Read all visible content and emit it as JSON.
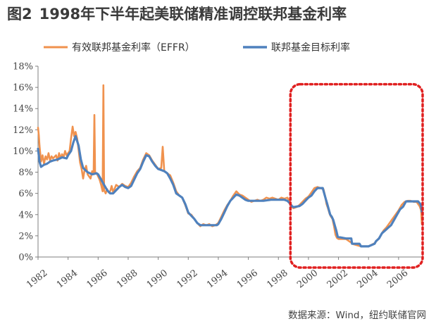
{
  "title": {
    "figure_label": "图2",
    "text": "1998年下半年起美联储精准调控联邦基金利率"
  },
  "source": "数据来源：Wind，纽约联储官网",
  "colors": {
    "effr": "#F0924E",
    "target": "#4F81BD",
    "highlight": "#E02020",
    "axis": "#7f7f7f",
    "title": "#3a3a3a"
  },
  "chart_data": {
    "type": "line",
    "title": "1998年下半年起美联储精准调控联邦基金利率",
    "legend_position": "top",
    "grid": false,
    "xlim": [
      1982,
      2007.6
    ],
    "ylim": [
      0,
      18
    ],
    "y_ticks": [
      "0%",
      "2%",
      "4%",
      "6%",
      "8%",
      "10%",
      "12%",
      "14%",
      "16%",
      "18%"
    ],
    "y_tick_values": [
      0,
      2,
      4,
      6,
      8,
      10,
      12,
      14,
      16,
      18
    ],
    "x_ticks": [
      "1982",
      "1984",
      "1986",
      "1988",
      "1990",
      "1992",
      "1994",
      "1996",
      "1998",
      "2000",
      "2002",
      "2004",
      "2006"
    ],
    "x_tick_values": [
      1982,
      1984,
      1986,
      1988,
      1990,
      1992,
      1994,
      1996,
      1998,
      2000,
      2002,
      2004,
      2006
    ],
    "highlight_box": {
      "x": [
        1998.8,
        2007.6
      ],
      "y": [
        -1.0,
        16.3
      ],
      "style": "dashed"
    },
    "series": [
      {
        "name": "有效联邦基金利率（EFFR）",
        "color": "#F0924E",
        "x": [
          1982.0,
          1982.05,
          1982.1,
          1982.2,
          1982.3,
          1982.4,
          1982.5,
          1982.6,
          1982.7,
          1982.8,
          1982.9,
          1983.0,
          1983.2,
          1983.3,
          1983.4,
          1983.5,
          1983.6,
          1983.7,
          1983.8,
          1983.9,
          1984.0,
          1984.1,
          1984.2,
          1984.3,
          1984.4,
          1984.5,
          1984.6,
          1984.7,
          1984.8,
          1984.9,
          1985.0,
          1985.1,
          1985.2,
          1985.3,
          1985.4,
          1985.5,
          1985.6,
          1985.7,
          1985.75,
          1985.8,
          1985.9,
          1986.0,
          1986.1,
          1986.2,
          1986.3,
          1986.35,
          1986.4,
          1986.5,
          1986.6,
          1986.7,
          1986.8,
          1986.9,
          1987.0,
          1987.2,
          1987.4,
          1987.6,
          1987.8,
          1988.0,
          1988.2,
          1988.4,
          1988.6,
          1988.8,
          1989.0,
          1989.2,
          1989.4,
          1989.6,
          1989.8,
          1990.0,
          1990.2,
          1990.3,
          1990.4,
          1990.6,
          1990.8,
          1991.0,
          1991.2,
          1991.4,
          1991.6,
          1991.8,
          1992.0,
          1992.2,
          1992.4,
          1992.6,
          1992.8,
          1993.0,
          1993.2,
          1993.4,
          1993.6,
          1993.8,
          1994.0,
          1994.2,
          1994.4,
          1994.6,
          1994.8,
          1995.0,
          1995.2,
          1995.4,
          1995.6,
          1995.8,
          1996.0,
          1996.2,
          1996.4,
          1996.6,
          1996.8,
          1997.0,
          1997.2,
          1997.4,
          1997.6,
          1997.8,
          1998.0,
          1998.2,
          1998.4,
          1998.6,
          1998.8,
          1998.9,
          1999.0,
          1999.2,
          1999.4,
          1999.6,
          1999.8,
          2000.0,
          2000.2,
          2000.4,
          2000.6,
          2000.8,
          2001.0,
          2001.1,
          2001.2,
          2001.3,
          2001.4,
          2001.5,
          2001.6,
          2001.7,
          2001.8,
          2001.9,
          2002.0,
          2002.5,
          2002.9,
          2003.0,
          2003.5,
          2003.9,
          2004.0,
          2004.4,
          2004.6,
          2004.8,
          2005.0,
          2005.2,
          2005.4,
          2005.6,
          2005.8,
          2006.0,
          2006.2,
          2006.4,
          2006.6,
          2006.8,
          2007.0,
          2007.2,
          2007.4,
          2007.5,
          2007.55
        ],
        "values": [
          12.2,
          11.5,
          10.5,
          9.0,
          9.6,
          8.8,
          9.5,
          9.2,
          9.8,
          9.1,
          9.5,
          9.3,
          9.6,
          9.1,
          9.8,
          9.3,
          9.7,
          9.4,
          10.0,
          9.6,
          9.8,
          10.0,
          11.2,
          12.3,
          11.4,
          11.8,
          11.2,
          10.1,
          8.9,
          8.3,
          7.4,
          8.2,
          8.6,
          7.8,
          7.6,
          7.4,
          8.1,
          7.8,
          13.4,
          8.0,
          7.9,
          7.6,
          7.3,
          6.8,
          6.2,
          16.2,
          6.3,
          6.0,
          6.4,
          6.1,
          6.2,
          6.7,
          6.1,
          6.8,
          6.6,
          6.9,
          6.7,
          6.6,
          7.0,
          7.6,
          8.1,
          8.4,
          9.2,
          9.8,
          9.6,
          9.1,
          8.7,
          8.3,
          8.4,
          10.4,
          8.1,
          7.9,
          7.7,
          7.0,
          6.2,
          5.8,
          5.6,
          4.9,
          4.1,
          4.0,
          3.6,
          3.2,
          2.9,
          3.1,
          3.0,
          3.1,
          2.9,
          3.0,
          3.2,
          3.8,
          4.4,
          4.9,
          5.3,
          5.8,
          6.2,
          5.9,
          5.8,
          5.6,
          5.4,
          5.2,
          5.3,
          5.4,
          5.3,
          5.4,
          5.6,
          5.5,
          5.6,
          5.5,
          5.4,
          5.6,
          5.5,
          5.6,
          5.1,
          4.7,
          4.6,
          4.7,
          4.9,
          5.2,
          5.5,
          5.7,
          6.1,
          6.5,
          6.6,
          6.5,
          6.4,
          5.8,
          5.0,
          4.6,
          4.1,
          3.8,
          3.6,
          2.9,
          2.1,
          1.8,
          1.7,
          1.7,
          1.3,
          1.2,
          1.0,
          1.0,
          1.0,
          1.3,
          1.6,
          2.0,
          2.5,
          2.8,
          3.2,
          3.6,
          4.0,
          4.4,
          4.9,
          5.2,
          5.3,
          5.3,
          5.2,
          5.2,
          4.8,
          4.4,
          3.1
        ]
      },
      {
        "name": "联邦基金目标利率",
        "color": "#4F81BD",
        "x": [
          1982.0,
          1982.1,
          1982.2,
          1982.4,
          1982.6,
          1982.8,
          1983.0,
          1983.3,
          1983.6,
          1983.9,
          1984.0,
          1984.2,
          1984.35,
          1984.5,
          1984.7,
          1984.85,
          1985.0,
          1985.3,
          1985.6,
          1985.9,
          1986.0,
          1986.2,
          1986.4,
          1986.6,
          1986.8,
          1987.0,
          1987.2,
          1987.4,
          1987.6,
          1987.8,
          1988.0,
          1988.2,
          1988.4,
          1988.6,
          1988.8,
          1989.0,
          1989.2,
          1989.4,
          1989.6,
          1989.8,
          1990.0,
          1990.2,
          1990.4,
          1990.6,
          1990.8,
          1991.0,
          1991.2,
          1991.4,
          1991.6,
          1991.8,
          1992.0,
          1992.2,
          1992.4,
          1992.6,
          1992.8,
          1993.0,
          1993.5,
          1993.9,
          1994.0,
          1994.2,
          1994.4,
          1994.6,
          1994.8,
          1995.0,
          1995.2,
          1995.4,
          1995.6,
          1995.8,
          1996.0,
          1996.5,
          1997.0,
          1997.5,
          1998.0,
          1998.4,
          1998.6,
          1998.8,
          1998.9,
          1999.0,
          1999.4,
          1999.6,
          1999.8,
          2000.0,
          2000.2,
          2000.4,
          2000.6,
          2000.8,
          2000.95,
          2001.05,
          2001.15,
          2001.25,
          2001.35,
          2001.45,
          2001.55,
          2001.65,
          2001.75,
          2001.85,
          2001.95,
          2002.5,
          2002.85,
          2002.9,
          2003.4,
          2003.5,
          2003.9,
          2004.0,
          2004.4,
          2004.5,
          2004.7,
          2004.9,
          2005.1,
          2005.3,
          2005.5,
          2005.7,
          2005.9,
          2006.1,
          2006.3,
          2006.5,
          2006.8,
          2007.0,
          2007.3,
          2007.45,
          2007.5,
          2007.55
        ],
        "values": [
          10.2,
          9.0,
          8.5,
          8.7,
          8.8,
          9.0,
          9.1,
          9.2,
          9.4,
          9.3,
          9.6,
          10.0,
          10.8,
          11.4,
          10.5,
          9.2,
          8.4,
          8.0,
          7.8,
          7.9,
          7.8,
          7.3,
          6.8,
          6.3,
          6.0,
          6.0,
          6.3,
          6.6,
          6.8,
          6.6,
          6.5,
          6.7,
          7.3,
          7.9,
          8.3,
          9.0,
          9.6,
          9.5,
          9.0,
          8.6,
          8.3,
          8.2,
          8.1,
          7.9,
          7.4,
          6.8,
          6.0,
          5.8,
          5.6,
          5.0,
          4.2,
          3.9,
          3.6,
          3.2,
          3.0,
          3.0,
          3.0,
          3.0,
          3.1,
          3.6,
          4.2,
          4.8,
          5.3,
          5.6,
          5.9,
          5.8,
          5.6,
          5.4,
          5.3,
          5.3,
          5.3,
          5.4,
          5.4,
          5.4,
          5.3,
          5.0,
          4.8,
          4.7,
          4.8,
          5.0,
          5.3,
          5.6,
          5.8,
          6.2,
          6.5,
          6.5,
          6.5,
          6.0,
          5.5,
          5.0,
          4.5,
          4.0,
          3.8,
          3.5,
          3.0,
          2.5,
          1.9,
          1.75,
          1.75,
          1.25,
          1.25,
          1.0,
          1.0,
          1.0,
          1.25,
          1.5,
          1.75,
          2.25,
          2.5,
          2.75,
          3.0,
          3.5,
          4.0,
          4.5,
          4.75,
          5.25,
          5.25,
          5.25,
          5.25,
          5.0,
          4.75,
          4.25
        ]
      }
    ]
  }
}
